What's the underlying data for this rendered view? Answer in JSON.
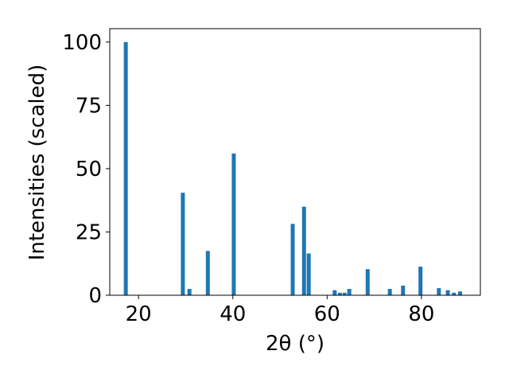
{
  "chart_data": {
    "type": "bar",
    "x_label": "2θ (°)",
    "y_label": "Intensities (scaled)",
    "x": [
      17.3,
      29.4,
      30.8,
      34.7,
      40.2,
      52.7,
      55.1,
      56.1,
      61.6,
      62.7,
      63.7,
      64.7,
      68.6,
      73.3,
      76.1,
      79.8,
      83.7,
      85.6,
      86.9,
      88.2
    ],
    "values": [
      100,
      40.5,
      2.5,
      17.5,
      56,
      28.2,
      35,
      16.5,
      2,
      1,
      1,
      2.5,
      10.3,
      2.5,
      3.8,
      11.3,
      2.8,
      2,
      1,
      1.5
    ],
    "color": "#1f77b4",
    "xlim": [
      13.9,
      92.5
    ],
    "xticks": [
      20,
      40,
      60,
      80
    ],
    "ylim": [
      0,
      105.3
    ],
    "yticks": [
      0,
      25,
      50,
      75,
      100
    ]
  }
}
